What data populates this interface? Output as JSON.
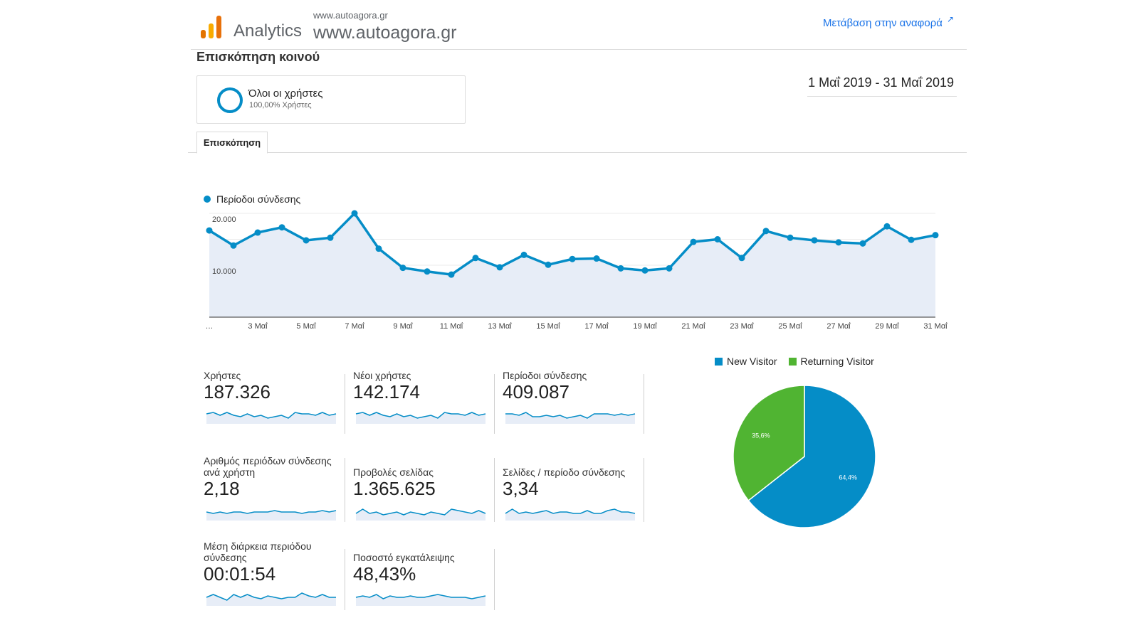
{
  "header": {
    "brand": "Analytics",
    "property_small": "www.autoagora.gr",
    "property_big": "www.autoagora.gr",
    "report_link": "Μετάβαση στην αναφορά"
  },
  "page_title": "Επισκόπηση κοινού",
  "segment": {
    "name": "Όλοι οι χρήστες",
    "percent": "100,00% Χρήστες"
  },
  "date_range": "1 Μαΐ 2019 - 31 Μαΐ 2019",
  "tabs": [
    {
      "label": "Επισκόπηση",
      "active": true
    }
  ],
  "colors": {
    "series": "#058dc7",
    "area": "#e7edf7",
    "new_visitor": "#058dc7",
    "returning_visitor": "#50b432",
    "link": "#1a73e8"
  },
  "chart_data": [
    {
      "type": "line",
      "legend": [
        "Περίοδοι σύνδεσης"
      ],
      "x_tick_labels": [
        "…",
        "3 Μαΐ",
        "5 Μαΐ",
        "7 Μαΐ",
        "9 Μαΐ",
        "11 Μαΐ",
        "13 Μαΐ",
        "15 Μαΐ",
        "17 Μαΐ",
        "19 Μαΐ",
        "21 Μαΐ",
        "23 Μαΐ",
        "25 Μαΐ",
        "27 Μαΐ",
        "29 Μαΐ",
        "31 Μαΐ"
      ],
      "y_tick_labels": [
        "20.000",
        "10.000"
      ],
      "y_ticks": [
        20000,
        10000
      ],
      "ylim": [
        0,
        20000
      ],
      "x": [
        1,
        2,
        3,
        4,
        5,
        6,
        7,
        8,
        9,
        10,
        11,
        12,
        13,
        14,
        15,
        16,
        17,
        18,
        19,
        20,
        21,
        22,
        23,
        24,
        25,
        26,
        27,
        28,
        29,
        30,
        31
      ],
      "series": [
        {
          "name": "Περίοδοι σύνδεσης",
          "values": [
            16700,
            13800,
            16300,
            17300,
            14800,
            15300,
            20000,
            13200,
            9500,
            8800,
            8200,
            11400,
            9600,
            12000,
            10100,
            11200,
            11300,
            9400,
            9000,
            9400,
            14500,
            15000,
            11400,
            16600,
            15300,
            14800,
            14400,
            14200,
            17500,
            14900,
            15800
          ]
        }
      ],
      "grid": true
    },
    {
      "type": "pie",
      "legend": [
        "New Visitor",
        "Returning Visitor"
      ],
      "labels": [
        "New Visitor",
        "Returning Visitor"
      ],
      "values": [
        64.4,
        35.6
      ],
      "value_labels": [
        "64,4%",
        "35,6%"
      ]
    }
  ],
  "metrics": [
    {
      "label": "Χρήστες",
      "value": "187.326",
      "spark": [
        5,
        6,
        4,
        6,
        4,
        3,
        5,
        3,
        4,
        2,
        3,
        4,
        2,
        6,
        5,
        5,
        4,
        6,
        4,
        5
      ]
    },
    {
      "label": "Νέοι χρήστες",
      "value": "142.174",
      "spark": [
        5,
        6,
        4,
        6,
        4,
        3,
        5,
        3,
        4,
        2,
        3,
        4,
        2,
        6,
        5,
        5,
        4,
        6,
        4,
        5
      ]
    },
    {
      "label": "Περίοδοι σύνδεσης",
      "value": "409.087",
      "spark": [
        5,
        5,
        4,
        6,
        3,
        3,
        4,
        3,
        4,
        2,
        3,
        4,
        2,
        5,
        5,
        5,
        4,
        5,
        4,
        5
      ]
    },
    {
      "label": "Αριθμός περιόδων σύνδεσης ανά χρήστη",
      "value": "2,18",
      "spark": [
        4,
        3,
        4,
        3,
        4,
        4,
        3,
        4,
        4,
        4,
        5,
        4,
        4,
        4,
        3,
        4,
        4,
        5,
        4,
        5
      ]
    },
    {
      "label": "Προβολές σελίδας",
      "value": "1.365.625",
      "spark": [
        3,
        6,
        3,
        4,
        2,
        3,
        4,
        2,
        4,
        3,
        2,
        4,
        3,
        2,
        6,
        5,
        4,
        3,
        5,
        3
      ]
    },
    {
      "label": "Σελίδες / περίοδο σύνδεσης",
      "value": "3,34",
      "spark": [
        3,
        6,
        3,
        4,
        3,
        4,
        5,
        3,
        4,
        4,
        3,
        3,
        5,
        3,
        3,
        5,
        6,
        4,
        4,
        3
      ]
    },
    {
      "label": "Μέση διάρκεια περιόδου σύνδεσης",
      "value": "00:01:54",
      "spark": [
        4,
        6,
        4,
        2,
        6,
        4,
        6,
        4,
        3,
        5,
        4,
        3,
        4,
        4,
        7,
        5,
        4,
        6,
        4,
        4
      ]
    },
    {
      "label": "Ποσοστό εγκατάλειψης",
      "value": "48,43%",
      "spark": [
        4,
        5,
        4,
        6,
        3,
        5,
        4,
        4,
        5,
        4,
        4,
        5,
        6,
        5,
        4,
        4,
        4,
        3,
        4,
        5
      ]
    }
  ]
}
